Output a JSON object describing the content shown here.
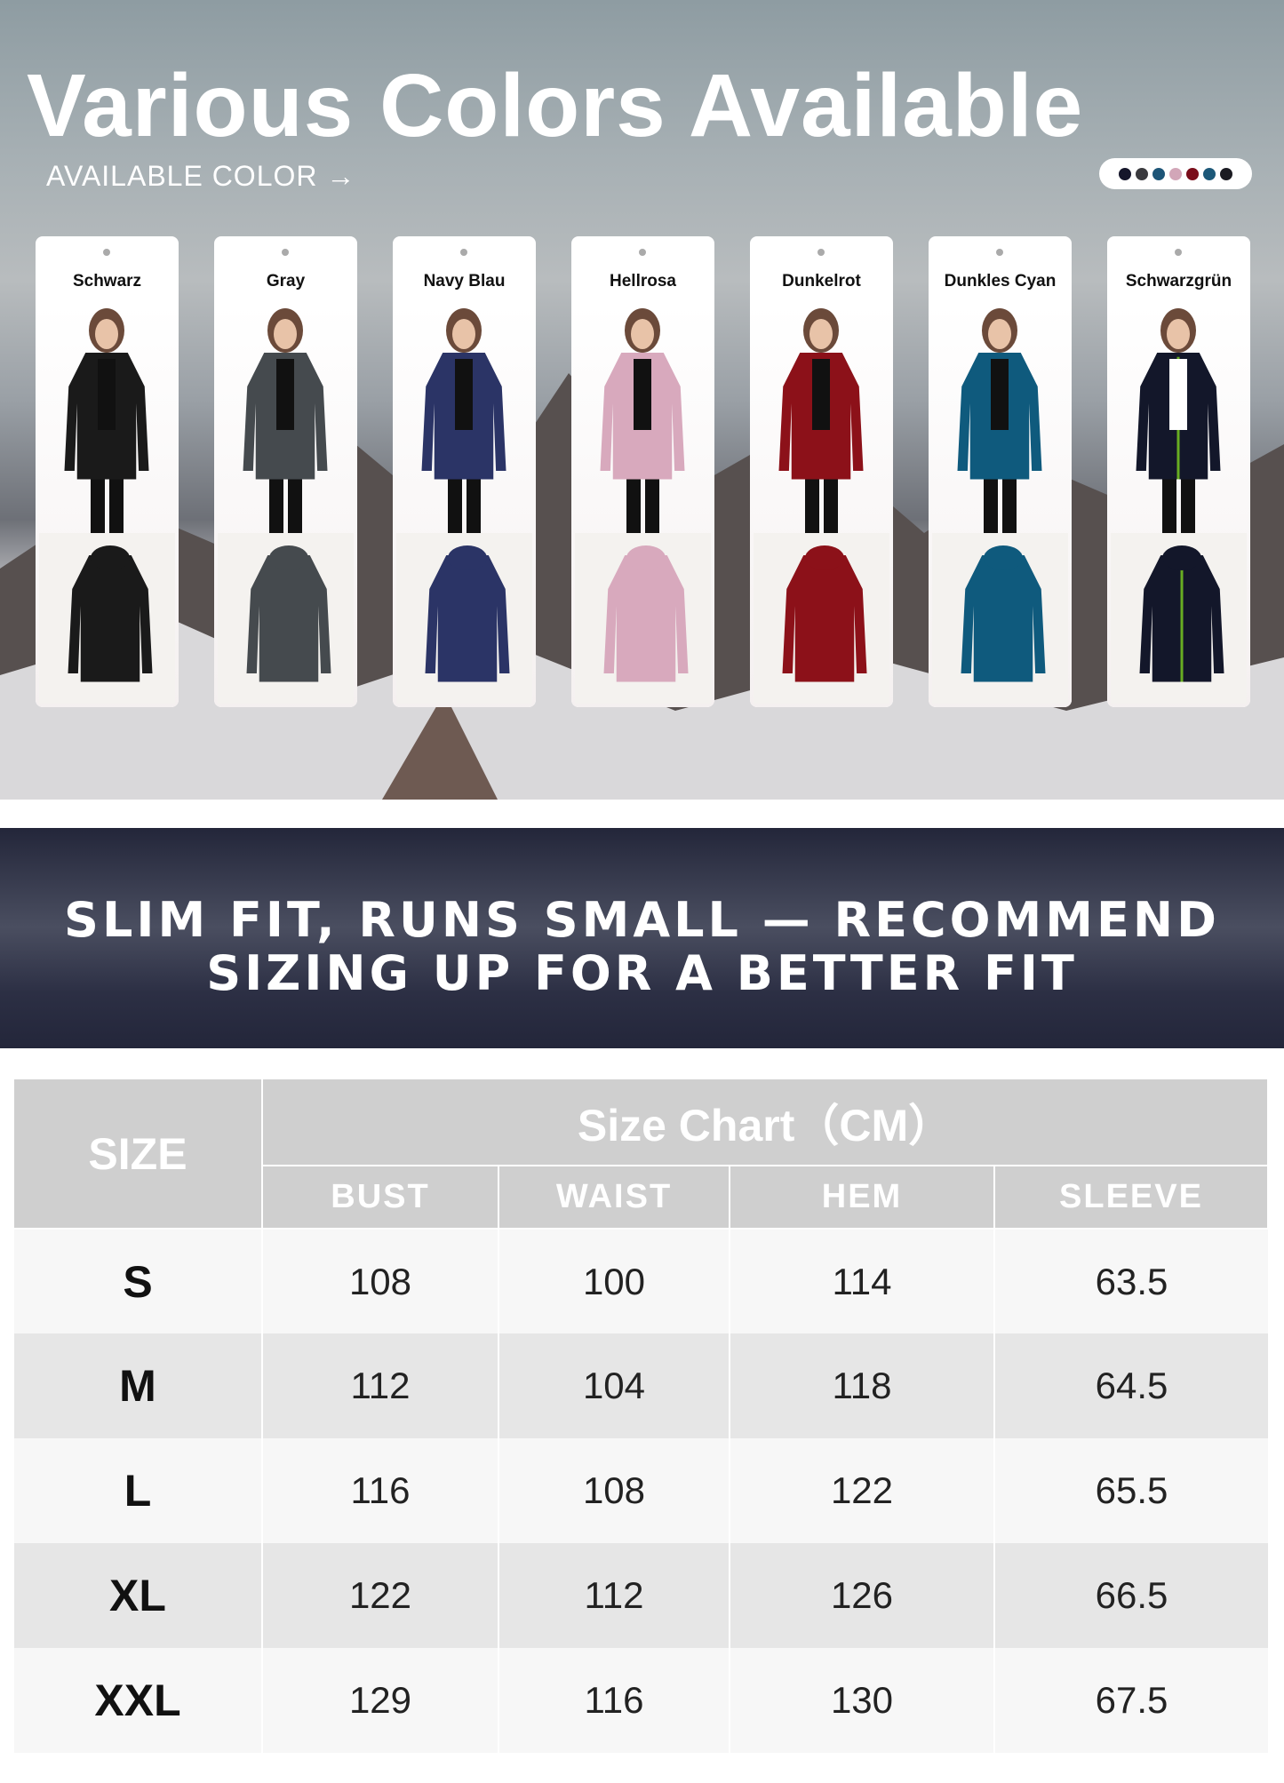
{
  "hero": {
    "title": "Various Colors Available",
    "subtitle": "AVAILABLE COLOR",
    "arrow": "→",
    "swatches": [
      "#15162a",
      "#3a3a3e",
      "#1d5577",
      "#d2a6b8",
      "#7a0d1a",
      "#1c5878",
      "#1b1b22"
    ]
  },
  "colors": [
    {
      "name": "Schwarz",
      "hex": "#1a1a1a",
      "trim": "#1a1a1a"
    },
    {
      "name": "Gray",
      "hex": "#454a4e",
      "trim": "#454a4e"
    },
    {
      "name": "Navy Blau",
      "hex": "#2b3466",
      "trim": "#2b3466"
    },
    {
      "name": "Hellrosa",
      "hex": "#d8a9bd",
      "trim": "#d8a9bd"
    },
    {
      "name": "Dunkelrot",
      "hex": "#8c1119",
      "trim": "#8c1119"
    },
    {
      "name": "Dunkles Cyan",
      "hex": "#0f5a7d",
      "trim": "#0f5a7d"
    },
    {
      "name": "Schwarzgrün",
      "hex": "#13172a",
      "trim": "#7ed321"
    }
  ],
  "banner": {
    "line1": "SLIM FIT, RUNS SMALL — RECOMMEND",
    "line2": "SIZING UP FOR A BETTER FIT"
  },
  "size_chart": {
    "size_header": "SIZE",
    "title": "Size Chart（CM）",
    "columns": [
      "BUST",
      "WAIST",
      "HEM",
      "SLEEVE"
    ],
    "rows": [
      {
        "size": "S",
        "values": [
          "108",
          "100",
          "114",
          "63.5"
        ]
      },
      {
        "size": "M",
        "values": [
          "112",
          "104",
          "118",
          "64.5"
        ]
      },
      {
        "size": "L",
        "values": [
          "116",
          "108",
          "122",
          "65.5"
        ]
      },
      {
        "size": "XL",
        "values": [
          "122",
          "112",
          "126",
          "66.5"
        ]
      },
      {
        "size": "XXL",
        "values": [
          "129",
          "116",
          "130",
          "67.5"
        ]
      }
    ]
  }
}
